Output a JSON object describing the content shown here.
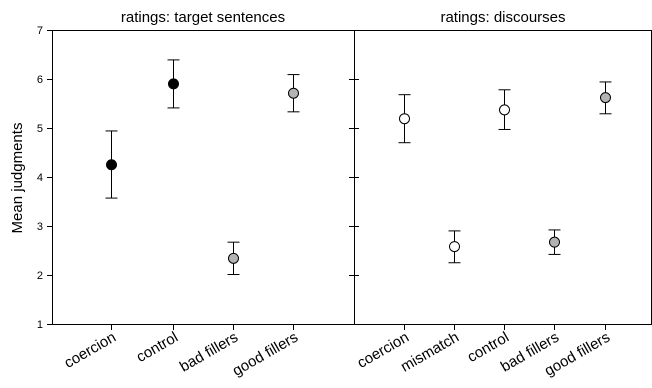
{
  "chart_data": [
    {
      "type": "scatter",
      "title": "ratings: target sentences",
      "ylabel": "Mean judgments",
      "ylim": [
        1,
        7
      ],
      "yticks": [
        "1",
        "2",
        "3",
        "4",
        "5",
        "6",
        "7"
      ],
      "categories": [
        "coercion",
        "control",
        "bad fillers",
        "good fillers"
      ],
      "points": [
        {
          "category": "coercion",
          "mean": 4.25,
          "lower": 3.57,
          "upper": 4.94,
          "fill": "#000000"
        },
        {
          "category": "control",
          "mean": 5.9,
          "lower": 5.41,
          "upper": 6.39,
          "fill": "#000000"
        },
        {
          "category": "bad fillers",
          "mean": 2.34,
          "lower": 2.01,
          "upper": 2.67,
          "fill": "#b3b3b3"
        },
        {
          "category": "good fillers",
          "mean": 5.71,
          "lower": 5.33,
          "upper": 6.09,
          "fill": "#b3b3b3"
        }
      ],
      "error_bars": true,
      "grid": false
    },
    {
      "type": "scatter",
      "title": "ratings: discourses",
      "ylim": [
        1,
        7
      ],
      "categories": [
        "coercion",
        "mismatch",
        "control",
        "bad fillers",
        "good fillers"
      ],
      "points": [
        {
          "category": "coercion",
          "mean": 5.19,
          "lower": 4.7,
          "upper": 5.68,
          "fill": "#ffffff"
        },
        {
          "category": "mismatch",
          "mean": 2.58,
          "lower": 2.25,
          "upper": 2.9,
          "fill": "#ffffff"
        },
        {
          "category": "control",
          "mean": 5.37,
          "lower": 4.97,
          "upper": 5.78,
          "fill": "#ffffff"
        },
        {
          "category": "bad fillers",
          "mean": 2.67,
          "lower": 2.42,
          "upper": 2.92,
          "fill": "#b3b3b3"
        },
        {
          "category": "good fillers",
          "mean": 5.62,
          "lower": 5.29,
          "upper": 5.94,
          "fill": "#b3b3b3"
        }
      ],
      "error_bars": true,
      "grid": false
    }
  ]
}
